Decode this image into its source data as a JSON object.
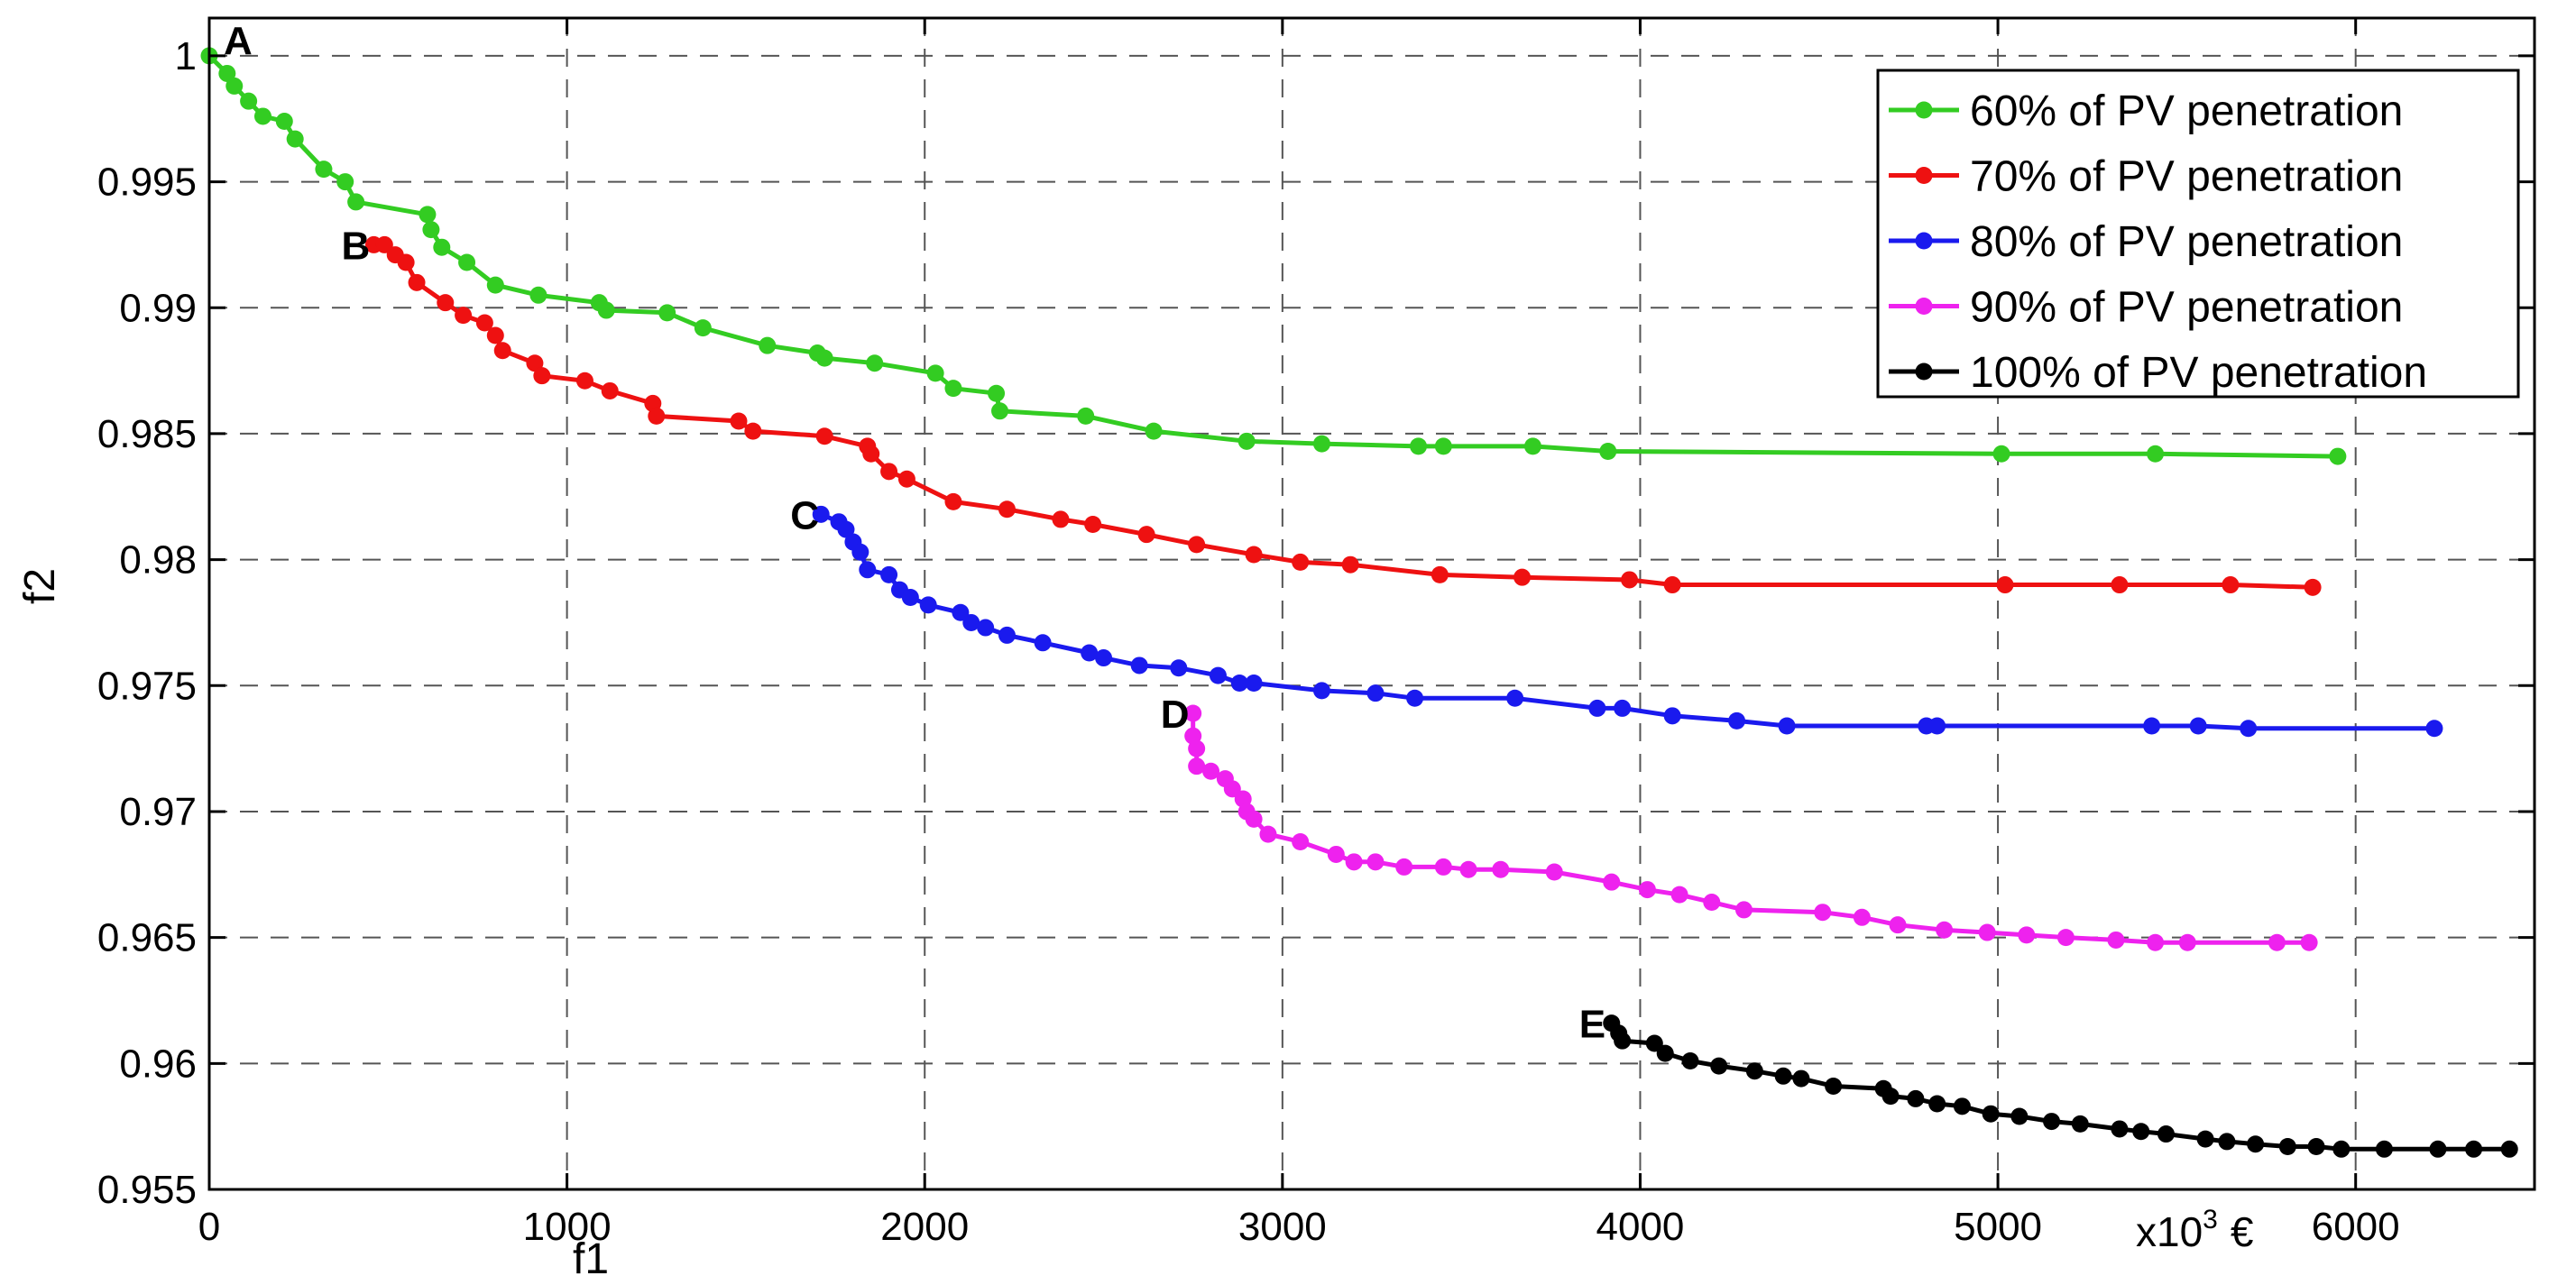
{
  "chart_data": {
    "type": "line",
    "title": "",
    "xlabel": "f1",
    "ylabel": "f2",
    "x_unit_prefix": "x10",
    "x_unit_exp": "3",
    "x_unit_symbol": "€",
    "xlim": [
      0,
      6500
    ],
    "ylim": [
      0.955,
      1.0015
    ],
    "xticks": [
      0,
      1000,
      2000,
      3000,
      4000,
      5000,
      6000
    ],
    "xtick_labels": [
      "0",
      "1000",
      "2000",
      "3000",
      "4000",
      "5000",
      "6000"
    ],
    "yticks": [
      0.955,
      0.96,
      0.965,
      0.97,
      0.975,
      0.98,
      0.985,
      0.99,
      0.995,
      1.0
    ],
    "ytick_labels": [
      "0.955",
      "0.96",
      "0.965",
      "0.97",
      "0.975",
      "0.98",
      "0.985",
      "0.99",
      "0.995",
      "1"
    ],
    "grid": true,
    "legend_position": "top-right",
    "series": [
      {
        "name": "60% of PV penetration",
        "color": "#33cc22",
        "points": [
          [
            0,
            1.0
          ],
          [
            50,
            0.9993
          ],
          [
            70,
            0.9988
          ],
          [
            110,
            0.9982
          ],
          [
            150,
            0.9976
          ],
          [
            210,
            0.9974
          ],
          [
            240,
            0.9967
          ],
          [
            320,
            0.9955
          ],
          [
            380,
            0.995
          ],
          [
            410,
            0.9942
          ],
          [
            610,
            0.9937
          ],
          [
            620,
            0.9931
          ],
          [
            650,
            0.9924
          ],
          [
            720,
            0.9918
          ],
          [
            800,
            0.9909
          ],
          [
            920,
            0.9905
          ],
          [
            1090,
            0.9902
          ],
          [
            1110,
            0.9899
          ],
          [
            1280,
            0.9898
          ],
          [
            1380,
            0.9892
          ],
          [
            1560,
            0.9885
          ],
          [
            1700,
            0.9882
          ],
          [
            1720,
            0.988
          ],
          [
            1860,
            0.9878
          ],
          [
            2030,
            0.9874
          ],
          [
            2080,
            0.9868
          ],
          [
            2200,
            0.9866
          ],
          [
            2210,
            0.9859
          ],
          [
            2450,
            0.9857
          ],
          [
            2640,
            0.9851
          ],
          [
            2900,
            0.9847
          ],
          [
            3110,
            0.9846
          ],
          [
            3380,
            0.9845
          ],
          [
            3450,
            0.9845
          ],
          [
            3700,
            0.9845
          ],
          [
            3910,
            0.9843
          ],
          [
            5010,
            0.9842
          ],
          [
            5440,
            0.9842
          ],
          [
            5950,
            0.9841
          ]
        ]
      },
      {
        "name": "70% of PV penetration",
        "color": "#ee1111",
        "points": [
          [
            460,
            0.9925
          ],
          [
            490,
            0.9925
          ],
          [
            520,
            0.9921
          ],
          [
            550,
            0.9918
          ],
          [
            580,
            0.991
          ],
          [
            660,
            0.9902
          ],
          [
            710,
            0.9897
          ],
          [
            770,
            0.9894
          ],
          [
            800,
            0.9889
          ],
          [
            820,
            0.9883
          ],
          [
            910,
            0.9878
          ],
          [
            930,
            0.9873
          ],
          [
            1050,
            0.9871
          ],
          [
            1120,
            0.9867
          ],
          [
            1240,
            0.9862
          ],
          [
            1250,
            0.9857
          ],
          [
            1480,
            0.9855
          ],
          [
            1520,
            0.9851
          ],
          [
            1720,
            0.9849
          ],
          [
            1840,
            0.9845
          ],
          [
            1850,
            0.9842
          ],
          [
            1900,
            0.9835
          ],
          [
            1950,
            0.9832
          ],
          [
            2080,
            0.9823
          ],
          [
            2230,
            0.982
          ],
          [
            2380,
            0.9816
          ],
          [
            2470,
            0.9814
          ],
          [
            2620,
            0.981
          ],
          [
            2760,
            0.9806
          ],
          [
            2920,
            0.9802
          ],
          [
            3050,
            0.9799
          ],
          [
            3190,
            0.9798
          ],
          [
            3440,
            0.9794
          ],
          [
            3670,
            0.9793
          ],
          [
            3970,
            0.9792
          ],
          [
            4090,
            0.979
          ],
          [
            5020,
            0.979
          ],
          [
            5340,
            0.979
          ],
          [
            5650,
            0.979
          ],
          [
            5880,
            0.9789
          ]
        ]
      },
      {
        "name": "80% of PV penetration",
        "color": "#1a1aee",
        "points": [
          [
            1710,
            0.9818
          ],
          [
            1760,
            0.9815
          ],
          [
            1780,
            0.9812
          ],
          [
            1800,
            0.9807
          ],
          [
            1820,
            0.9803
          ],
          [
            1840,
            0.9796
          ],
          [
            1900,
            0.9794
          ],
          [
            1930,
            0.9788
          ],
          [
            1960,
            0.9785
          ],
          [
            2010,
            0.9782
          ],
          [
            2100,
            0.9779
          ],
          [
            2130,
            0.9775
          ],
          [
            2170,
            0.9773
          ],
          [
            2230,
            0.977
          ],
          [
            2330,
            0.9767
          ],
          [
            2460,
            0.9763
          ],
          [
            2500,
            0.9761
          ],
          [
            2600,
            0.9758
          ],
          [
            2710,
            0.9757
          ],
          [
            2820,
            0.9754
          ],
          [
            2880,
            0.9751
          ],
          [
            2920,
            0.9751
          ],
          [
            3110,
            0.9748
          ],
          [
            3260,
            0.9747
          ],
          [
            3370,
            0.9745
          ],
          [
            3650,
            0.9745
          ],
          [
            3880,
            0.9741
          ],
          [
            3950,
            0.9741
          ],
          [
            4090,
            0.9738
          ],
          [
            4270,
            0.9736
          ],
          [
            4410,
            0.9734
          ],
          [
            4800,
            0.9734
          ],
          [
            4830,
            0.9734
          ],
          [
            5430,
            0.9734
          ],
          [
            5560,
            0.9734
          ],
          [
            5700,
            0.9733
          ],
          [
            6220,
            0.9733
          ]
        ]
      },
      {
        "name": "90% of PV penetration",
        "color": "#ee22ee",
        "points": [
          [
            2750,
            0.9739
          ],
          [
            2750,
            0.973
          ],
          [
            2760,
            0.9725
          ],
          [
            2760,
            0.9718
          ],
          [
            2800,
            0.9716
          ],
          [
            2840,
            0.9713
          ],
          [
            2860,
            0.9709
          ],
          [
            2890,
            0.9705
          ],
          [
            2900,
            0.97
          ],
          [
            2920,
            0.9697
          ],
          [
            2960,
            0.9691
          ],
          [
            3050,
            0.9688
          ],
          [
            3150,
            0.9683
          ],
          [
            3200,
            0.968
          ],
          [
            3260,
            0.968
          ],
          [
            3340,
            0.9678
          ],
          [
            3450,
            0.9678
          ],
          [
            3520,
            0.9677
          ],
          [
            3610,
            0.9677
          ],
          [
            3760,
            0.9676
          ],
          [
            3920,
            0.9672
          ],
          [
            4020,
            0.9669
          ],
          [
            4110,
            0.9667
          ],
          [
            4200,
            0.9664
          ],
          [
            4290,
            0.9661
          ],
          [
            4510,
            0.966
          ],
          [
            4620,
            0.9658
          ],
          [
            4720,
            0.9655
          ],
          [
            4850,
            0.9653
          ],
          [
            4970,
            0.9652
          ],
          [
            5080,
            0.9651
          ],
          [
            5190,
            0.965
          ],
          [
            5330,
            0.9649
          ],
          [
            5440,
            0.9648
          ],
          [
            5530,
            0.9648
          ],
          [
            5780,
            0.9648
          ],
          [
            5870,
            0.9648
          ]
        ]
      },
      {
        "name": "100% of PV penetration",
        "color": "#000000",
        "points": [
          [
            3920,
            0.9616
          ],
          [
            3940,
            0.9612
          ],
          [
            3950,
            0.9609
          ],
          [
            4040,
            0.9608
          ],
          [
            4070,
            0.9604
          ],
          [
            4140,
            0.9601
          ],
          [
            4220,
            0.9599
          ],
          [
            4320,
            0.9597
          ],
          [
            4400,
            0.9595
          ],
          [
            4450,
            0.9594
          ],
          [
            4540,
            0.9591
          ],
          [
            4680,
            0.959
          ],
          [
            4700,
            0.9587
          ],
          [
            4770,
            0.9586
          ],
          [
            4830,
            0.9584
          ],
          [
            4900,
            0.9583
          ],
          [
            4980,
            0.958
          ],
          [
            5060,
            0.9579
          ],
          [
            5150,
            0.9577
          ],
          [
            5230,
            0.9576
          ],
          [
            5340,
            0.9574
          ],
          [
            5400,
            0.9573
          ],
          [
            5470,
            0.9572
          ],
          [
            5580,
            0.957
          ],
          [
            5640,
            0.9569
          ],
          [
            5720,
            0.9568
          ],
          [
            5810,
            0.9567
          ],
          [
            5890,
            0.9567
          ],
          [
            5960,
            0.9566
          ],
          [
            6080,
            0.9566
          ],
          [
            6230,
            0.9566
          ],
          [
            6330,
            0.9566
          ],
          [
            6430,
            0.9566
          ]
        ]
      }
    ],
    "annotations": [
      {
        "text": "A",
        "x": 0,
        "y": 1.0
      },
      {
        "text": "B",
        "x": 460,
        "y": 0.9925
      },
      {
        "text": "C",
        "x": 1710,
        "y": 0.9818
      },
      {
        "text": "D",
        "x": 2750,
        "y": 0.9739
      },
      {
        "text": "E",
        "x": 3920,
        "y": 0.9616
      }
    ]
  }
}
